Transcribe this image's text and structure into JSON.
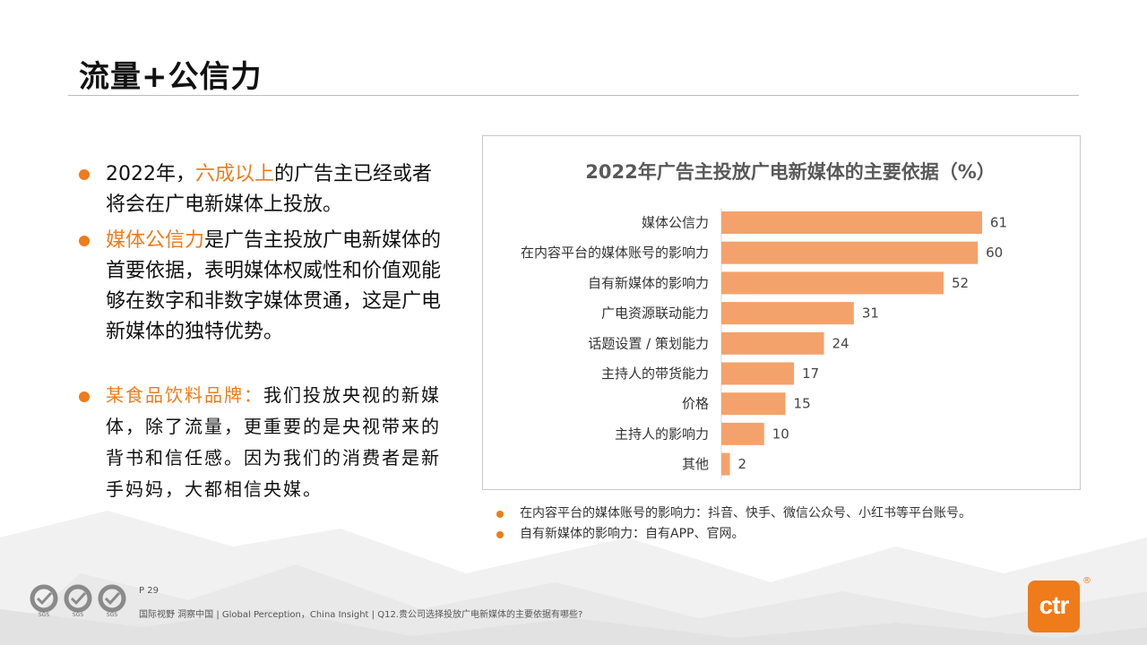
{
  "title": "流量+公信力",
  "bullets": [
    {
      "prefix": "2022年，",
      "highlight": "六成以上",
      "text": "的广告主已经或者将会在广电新媒体上投放。"
    },
    {
      "prefix": "",
      "highlight": "媒体公信力",
      "text": "是广告主投放广电新媒体的首要依据，表明媒体权威性和价值观能够在数字和非数字媒体贯通，这是广电新媒体的独特优势。"
    }
  ],
  "quote": {
    "brand": "某食品饮料品牌：",
    "text": "我们投放央视的新媒体，除了流量，更重要的是央视带来的背书和信任感。因为我们的消费者是新手妈妈，大都相信央媒。"
  },
  "chart_data": {
    "type": "bar",
    "orientation": "horizontal",
    "title": "2022年广告主投放广电新媒体的主要依据（%）",
    "categories": [
      "媒体公信力",
      "在内容平台的媒体账号的影响力",
      "自有新媒体的影响力",
      "广电资源联动能力",
      "话题设置 / 策划能力",
      "主持人的带货能力",
      "价格",
      "主持人的影响力",
      "其他"
    ],
    "values": [
      61,
      60,
      52,
      31,
      24,
      17,
      15,
      10,
      2
    ],
    "xlim": [
      0,
      65
    ],
    "color": "#f4a26b",
    "grid": false,
    "legend": "none"
  },
  "notes": [
    "在内容平台的媒体账号的影响力：抖音、快手、微信公众号、小红书等平台账号。",
    "自有新媒体的影响力：自有APP、官网。"
  ],
  "footer": {
    "page": "P 29",
    "text": "国际视野  洞察中国 |  Global Perception，China Insight | Q12.贵公司选择投放广电新媒体的主要依据有哪些?",
    "certs": [
      "SGS",
      "SGS",
      "SGS"
    ]
  },
  "logo": {
    "text": "ctr",
    "mark": "®"
  },
  "colors": {
    "accent": "#ef7b1a",
    "bar": "#f4a26b"
  }
}
